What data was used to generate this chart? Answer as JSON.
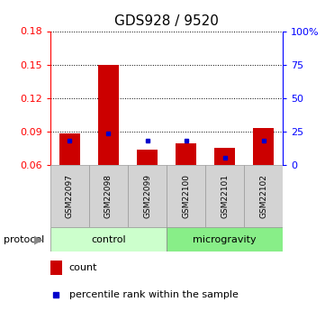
{
  "title": "GDS928 / 9520",
  "samples": [
    "GSM22097",
    "GSM22098",
    "GSM22099",
    "GSM22100",
    "GSM22101",
    "GSM22102"
  ],
  "count_values": [
    0.088,
    0.15,
    0.074,
    0.079,
    0.075,
    0.093
  ],
  "percentile_values": [
    0.082,
    0.088,
    0.082,
    0.082,
    0.066,
    0.082
  ],
  "baseline": 0.06,
  "ylim_left": [
    0.06,
    0.18
  ],
  "ylim_right": [
    0,
    100
  ],
  "yticks_left": [
    0.06,
    0.09,
    0.12,
    0.15,
    0.18
  ],
  "yticks_right": [
    0,
    25,
    50,
    75,
    100
  ],
  "ytick_labels_right": [
    "0",
    "25",
    "50",
    "75",
    "100%"
  ],
  "bar_color": "#cc0000",
  "percentile_color": "#0000cc",
  "bar_width": 0.55,
  "background_color": "#ffffff",
  "grid_color": "#000000",
  "legend_count_label": "count",
  "legend_percentile_label": "percentile rank within the sample",
  "title_fontsize": 11,
  "tick_fontsize": 8,
  "sample_fontsize": 6.5,
  "proto_fontsize": 8,
  "legend_fontsize": 8,
  "control_color": "#ccffcc",
  "microgravity_color": "#88ee88",
  "sample_box_color": "#d3d3d3",
  "sample_box_edge": "#999999"
}
